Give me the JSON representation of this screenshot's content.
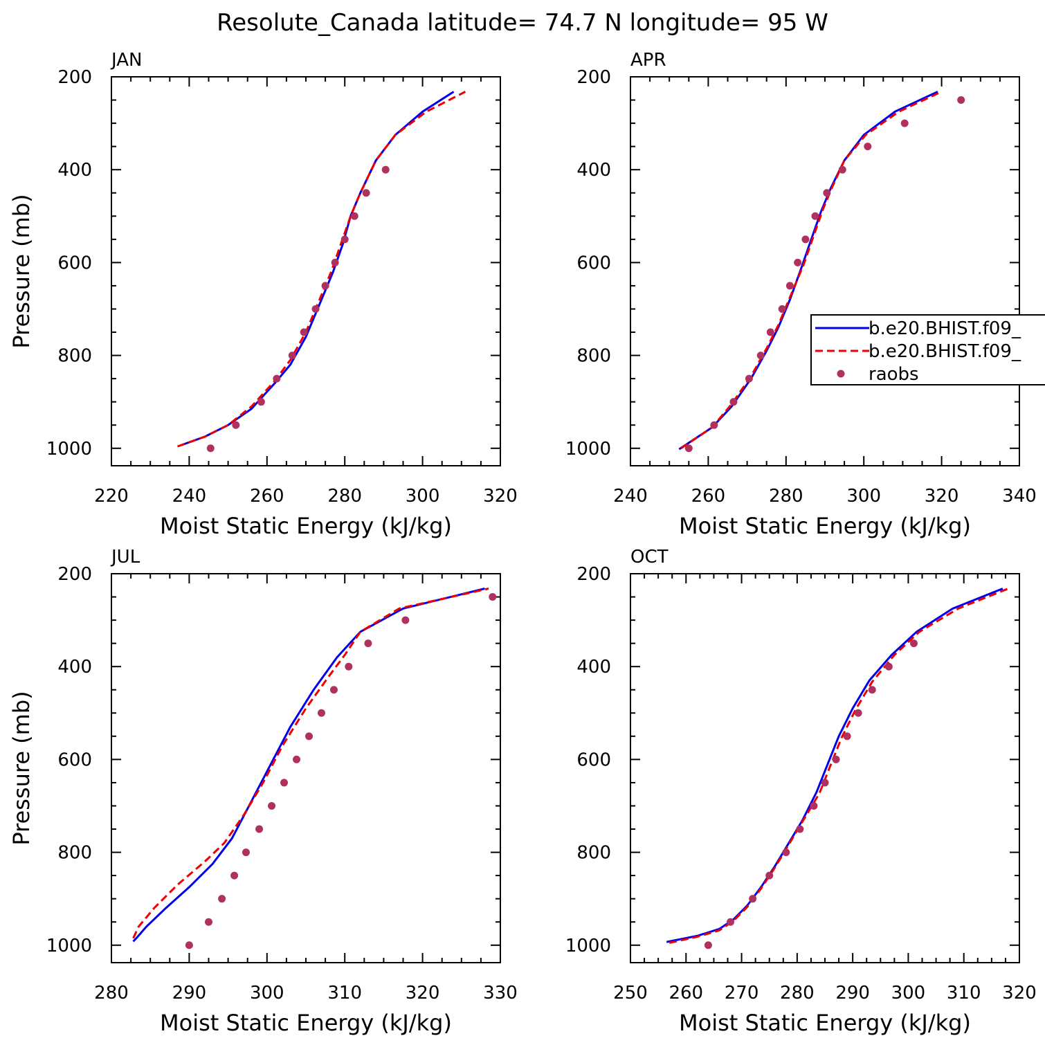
{
  "figure": {
    "title": "Resolute_Canada  latitude= 74.7 N longitude= 95 W"
  },
  "legend": {
    "entries": [
      {
        "label": "b.e20.BHIST.f09_",
        "color": "#0000ee",
        "style": "solid"
      },
      {
        "label": "b.e20.BHIST.f09_",
        "color": "#ee0000",
        "style": "dashed"
      },
      {
        "label": "raobs",
        "color": "#b03060",
        "style": "marker"
      }
    ]
  },
  "chart_data": [
    {
      "type": "line",
      "title": "JAN",
      "xlabel": "Moist Static Energy (kJ/kg)",
      "ylabel": "Pressure (mb)",
      "xlim": [
        220,
        320
      ],
      "ylim": [
        1000,
        200
      ],
      "xticks": [
        220,
        240,
        260,
        280,
        300,
        320
      ],
      "yticks": [
        200,
        400,
        600,
        800,
        1000
      ],
      "y_reversed": true,
      "series": [
        {
          "color": "#0000ee",
          "style": "solid",
          "points": [
            [
              238,
              993
            ],
            [
              244,
              975
            ],
            [
              250,
              950
            ],
            [
              256,
              915
            ],
            [
              262,
              860
            ],
            [
              266,
              820
            ],
            [
              270,
              760
            ],
            [
              274,
              680
            ],
            [
              277,
              620
            ],
            [
              279.5,
              560
            ],
            [
              281.5,
              500
            ],
            [
              284,
              450
            ],
            [
              288,
              380
            ],
            [
              293,
              325
            ],
            [
              300,
              275
            ],
            [
              308,
              232
            ]
          ]
        },
        {
          "color": "#ee0000",
          "style": "dashed",
          "points": [
            [
              237,
              996
            ],
            [
              244,
              975
            ],
            [
              250,
              950
            ],
            [
              256,
              910
            ],
            [
              262,
              855
            ],
            [
              266,
              810
            ],
            [
              270,
              750
            ],
            [
              273.5,
              680
            ],
            [
              276.5,
              620
            ],
            [
              279,
              560
            ],
            [
              281.5,
              500
            ],
            [
              284,
              450
            ],
            [
              288,
              380
            ],
            [
              293,
              325
            ],
            [
              301,
              275
            ],
            [
              311,
              232
            ]
          ]
        },
        {
          "color": "#b03060",
          "style": "marker",
          "points": [
            [
              245.5,
              1000
            ],
            [
              252,
              950
            ],
            [
              258.5,
              900
            ],
            [
              262.5,
              850
            ],
            [
              266.5,
              800
            ],
            [
              269.5,
              750
            ],
            [
              272.5,
              700
            ],
            [
              275,
              650
            ],
            [
              277.5,
              600
            ],
            [
              280,
              550
            ],
            [
              282.5,
              500
            ],
            [
              285.5,
              450
            ],
            [
              290.5,
              400
            ]
          ]
        }
      ]
    },
    {
      "type": "line",
      "title": "APR",
      "xlabel": "Moist Static Energy (kJ/kg)",
      "ylabel": "",
      "xlim": [
        240,
        340
      ],
      "ylim": [
        1000,
        200
      ],
      "xticks": [
        240,
        260,
        280,
        300,
        320,
        340
      ],
      "yticks": [
        200,
        400,
        600,
        800,
        1000
      ],
      "y_reversed": true,
      "series": [
        {
          "color": "#0000ee",
          "style": "solid",
          "points": [
            [
              252.5,
              1002
            ],
            [
              261,
              955
            ],
            [
              266,
              910
            ],
            [
              271,
              850
            ],
            [
              275,
              790
            ],
            [
              278,
              740
            ],
            [
              281,
              680
            ],
            [
              284,
              610
            ],
            [
              286.5,
              550
            ],
            [
              289,
              490
            ],
            [
              291.5,
              440
            ],
            [
              295,
              380
            ],
            [
              300,
              325
            ],
            [
              308,
              275
            ],
            [
              319,
              232
            ]
          ]
        },
        {
          "color": "#ee0000",
          "style": "dashed",
          "points": [
            [
              253,
              1000
            ],
            [
              261,
              955
            ],
            [
              266,
              905
            ],
            [
              271,
              845
            ],
            [
              275,
              785
            ],
            [
              278,
              735
            ],
            [
              281,
              675
            ],
            [
              284.5,
              605
            ],
            [
              287,
              545
            ],
            [
              289.5,
              485
            ],
            [
              292,
              435
            ],
            [
              295,
              380
            ],
            [
              300.5,
              325
            ],
            [
              309,
              275
            ],
            [
              320,
              232
            ]
          ]
        },
        {
          "color": "#b03060",
          "style": "marker",
          "points": [
            [
              255,
              1000
            ],
            [
              261.5,
              950
            ],
            [
              266.5,
              900
            ],
            [
              270.5,
              850
            ],
            [
              273.5,
              800
            ],
            [
              276,
              750
            ],
            [
              279,
              700
            ],
            [
              281,
              650
            ],
            [
              283,
              600
            ],
            [
              285,
              550
            ],
            [
              287.5,
              500
            ],
            [
              290.5,
              450
            ],
            [
              294.5,
              400
            ],
            [
              301,
              350
            ],
            [
              310.5,
              300
            ],
            [
              325,
              250
            ]
          ]
        }
      ]
    },
    {
      "type": "line",
      "title": "JUL",
      "xlabel": "Moist Static Energy (kJ/kg)",
      "ylabel": "Pressure (mb)",
      "xlim": [
        280,
        330
      ],
      "ylim": [
        1000,
        200
      ],
      "xticks": [
        280,
        290,
        300,
        310,
        320,
        330
      ],
      "yticks": [
        200,
        400,
        600,
        800,
        1000
      ],
      "y_reversed": true,
      "series": [
        {
          "color": "#0000ee",
          "style": "solid",
          "points": [
            [
              282.8,
              992
            ],
            [
              283.2,
              985
            ],
            [
              284.5,
              960
            ],
            [
              287,
              920
            ],
            [
              290,
              875
            ],
            [
              293,
              825
            ],
            [
              295.5,
              770
            ],
            [
              298,
              690
            ],
            [
              300.5,
              610
            ],
            [
              303,
              530
            ],
            [
              306,
              450
            ],
            [
              309,
              380
            ],
            [
              312,
              325
            ],
            [
              317.5,
              275
            ],
            [
              328,
              232
            ]
          ]
        },
        {
          "color": "#ee0000",
          "style": "dashed",
          "points": [
            [
              282.8,
              985
            ],
            [
              283.5,
              960
            ],
            [
              285.5,
              920
            ],
            [
              288.5,
              870
            ],
            [
              292,
              820
            ],
            [
              294.5,
              780
            ],
            [
              297,
              720
            ],
            [
              299.5,
              650
            ],
            [
              302,
              570
            ],
            [
              305,
              490
            ],
            [
              308,
              420
            ],
            [
              310,
              375
            ],
            [
              312,
              325
            ],
            [
              317,
              275
            ],
            [
              328.5,
              232
            ]
          ]
        },
        {
          "color": "#b03060",
          "style": "marker",
          "points": [
            [
              290,
              1000
            ],
            [
              292.5,
              950
            ],
            [
              294.2,
              900
            ],
            [
              295.8,
              850
            ],
            [
              297.3,
              800
            ],
            [
              299,
              750
            ],
            [
              300.6,
              700
            ],
            [
              302.2,
              650
            ],
            [
              303.8,
              600
            ],
            [
              305.4,
              550
            ],
            [
              307,
              500
            ],
            [
              308.6,
              450
            ],
            [
              310.5,
              400
            ],
            [
              313,
              350
            ],
            [
              317.8,
              300
            ],
            [
              329,
              250
            ]
          ]
        }
      ]
    },
    {
      "type": "line",
      "title": "OCT",
      "xlabel": "Moist Static Energy (kJ/kg)",
      "ylabel": "",
      "xlim": [
        250,
        320
      ],
      "ylim": [
        1000,
        200
      ],
      "xticks": [
        250,
        260,
        270,
        280,
        290,
        300,
        310,
        320
      ],
      "yticks": [
        200,
        400,
        600,
        800,
        1000
      ],
      "y_reversed": true,
      "series": [
        {
          "color": "#0000ee",
          "style": "solid",
          "points": [
            [
              256.5,
              993
            ],
            [
              262,
              980
            ],
            [
              266,
              965
            ],
            [
              268.5,
              945
            ],
            [
              271,
              915
            ],
            [
              273.5,
              875
            ],
            [
              276,
              830
            ],
            [
              278.5,
              780
            ],
            [
              281,
              730
            ],
            [
              283.5,
              670
            ],
            [
              285.5,
              610
            ],
            [
              287.5,
              550
            ],
            [
              290,
              490
            ],
            [
              293,
              430
            ],
            [
              297,
              375
            ],
            [
              301.5,
              325
            ],
            [
              308,
              275
            ],
            [
              317,
              232
            ]
          ]
        },
        {
          "color": "#ee0000",
          "style": "dashed",
          "points": [
            [
              257,
              995
            ],
            [
              262,
              982
            ],
            [
              266,
              968
            ],
            [
              268.5,
              948
            ],
            [
              271,
              918
            ],
            [
              273.5,
              878
            ],
            [
              276,
              833
            ],
            [
              278.5,
              783
            ],
            [
              281,
              733
            ],
            [
              284,
              673
            ],
            [
              286,
              613
            ],
            [
              288,
              553
            ],
            [
              290.5,
              493
            ],
            [
              293.5,
              433
            ],
            [
              297.5,
              375
            ],
            [
              302,
              325
            ],
            [
              309,
              275
            ],
            [
              318,
              232
            ]
          ]
        },
        {
          "color": "#b03060",
          "style": "marker",
          "points": [
            [
              264,
              1000
            ],
            [
              268,
              950
            ],
            [
              272,
              900
            ],
            [
              275,
              850
            ],
            [
              278,
              800
            ],
            [
              280.5,
              750
            ],
            [
              283,
              700
            ],
            [
              285,
              650
            ],
            [
              287,
              600
            ],
            [
              289,
              550
            ],
            [
              291,
              500
            ],
            [
              293.5,
              450
            ],
            [
              296.5,
              400
            ],
            [
              301,
              350
            ]
          ]
        }
      ]
    }
  ]
}
